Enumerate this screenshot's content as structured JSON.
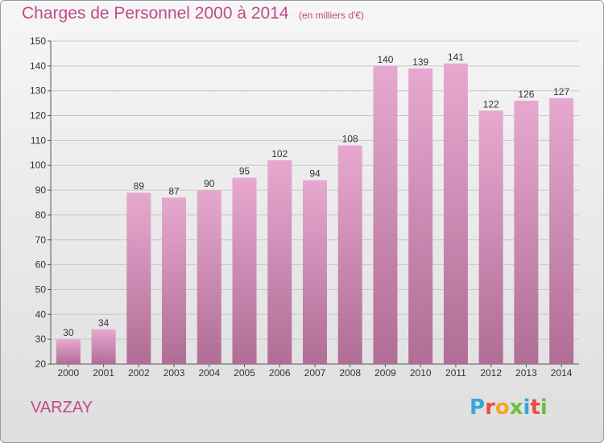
{
  "header": {
    "title": "Charges de Personnel 2000 à 2014",
    "subtitle": "(en milliers d'€)"
  },
  "footer": {
    "commune": "VARZAY",
    "logo_letters": [
      "P",
      "r",
      "o",
      "x",
      "i",
      "t",
      "i"
    ],
    "logo_colors": [
      "#3aa3dc",
      "#e94e3c",
      "#f5a623",
      "#6cbf3f",
      "#3aa3dc",
      "#e94e3c",
      "#6cbf3f"
    ]
  },
  "colors": {
    "title": "#c04a86",
    "bar_top": "#e7a8d0",
    "bar_bottom": "#b06d96",
    "grid": "#c8c8c8",
    "text": "#333333"
  },
  "chart_data": {
    "type": "bar",
    "categories": [
      "2000",
      "2001",
      "2002",
      "2003",
      "2004",
      "2005",
      "2006",
      "2007",
      "2008",
      "2009",
      "2010",
      "2011",
      "2012",
      "2013",
      "2014"
    ],
    "values": [
      30,
      34,
      89,
      87,
      90,
      95,
      102,
      94,
      108,
      140,
      139,
      141,
      122,
      126,
      127
    ],
    "ylim": [
      20,
      150
    ],
    "yticks": [
      20,
      30,
      40,
      50,
      60,
      70,
      80,
      90,
      100,
      110,
      120,
      130,
      140,
      150
    ],
    "grid": true
  }
}
